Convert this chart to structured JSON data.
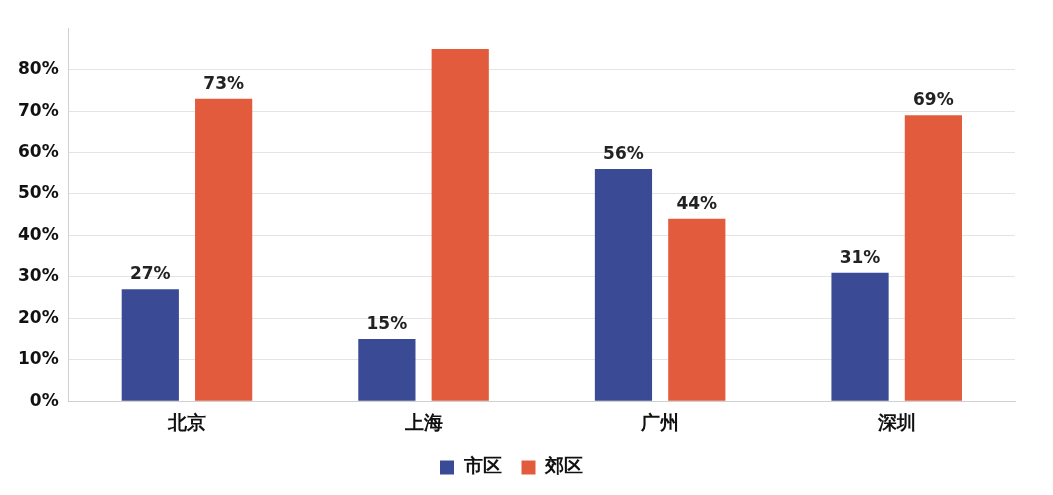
{
  "chart_data": {
    "type": "bar",
    "categories": [
      "北京",
      "上海",
      "广州",
      "深圳"
    ],
    "series": [
      {
        "name": "市区",
        "color": "#3b4a94",
        "values": [
          27,
          15,
          56,
          31
        ],
        "value_labels": [
          "27%",
          "15%",
          "56%",
          "31%"
        ]
      },
      {
        "name": "郊区",
        "color": "#e25b3d",
        "values": [
          73,
          85,
          44,
          69
        ],
        "value_labels": [
          "73%",
          null,
          "44%",
          "69%"
        ]
      }
    ],
    "ylim": [
      0,
      90
    ],
    "yticks": [
      {
        "value": 0,
        "label": "0%"
      },
      {
        "value": 10,
        "label": "10%"
      },
      {
        "value": 20,
        "label": "20%"
      },
      {
        "value": 30,
        "label": "30%"
      },
      {
        "value": 40,
        "label": "40%"
      },
      {
        "value": 50,
        "label": "50%"
      },
      {
        "value": 60,
        "label": "60%"
      },
      {
        "value": 70,
        "label": "70%"
      },
      {
        "value": 80,
        "label": "80%"
      }
    ],
    "grid": "y",
    "legend": "bottom"
  }
}
